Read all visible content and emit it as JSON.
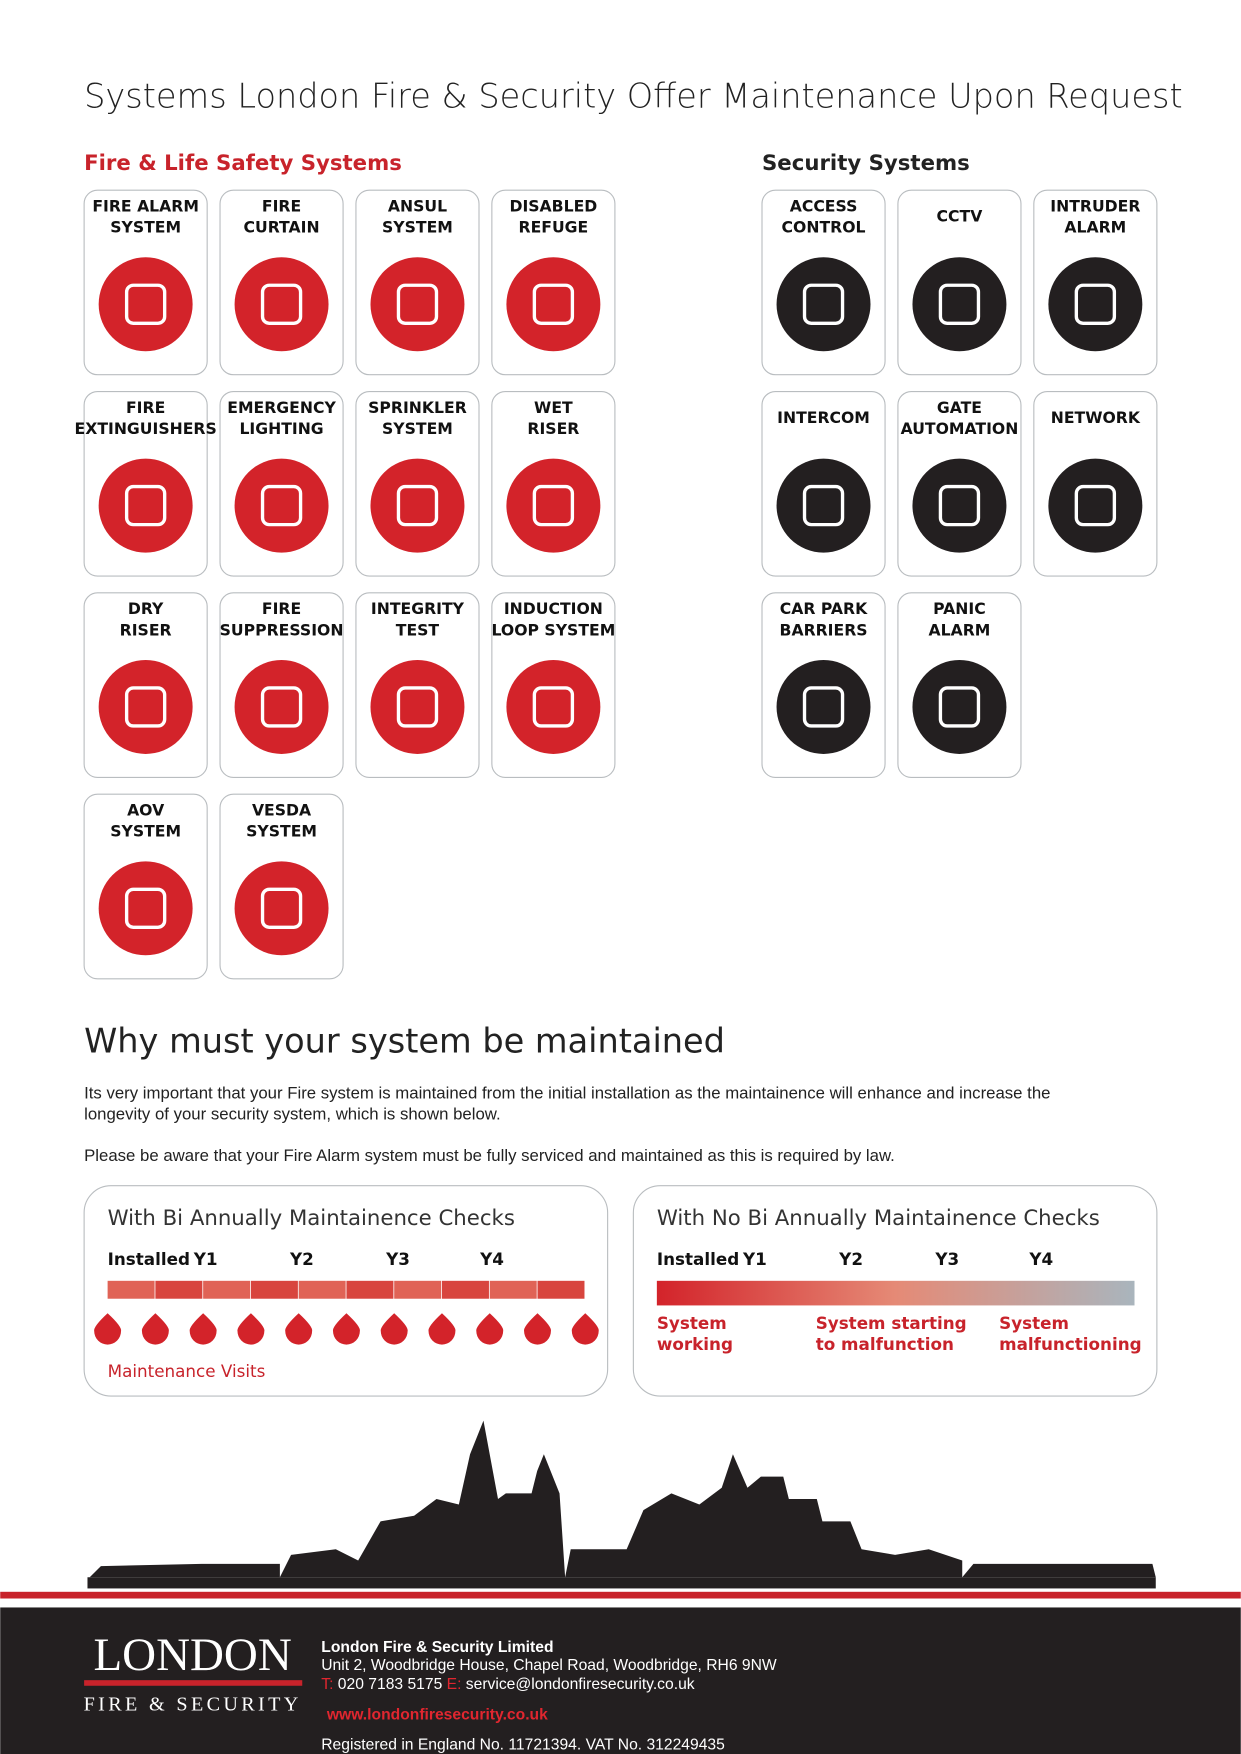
{
  "header": {
    "title": "Systems London Fire & Security Offer Maintenance Upon Request"
  },
  "fire": {
    "heading": "Fire & Life Safety Systems",
    "items": [
      [
        "FIRE ALARM",
        "SYSTEM"
      ],
      [
        "FIRE",
        "CURTAIN"
      ],
      [
        "ANSUL",
        "SYSTEM"
      ],
      [
        "DISABLED",
        "REFUGE"
      ],
      [
        "FIRE",
        "EXTINGUISHERS"
      ],
      [
        "EMERGENCY",
        "LIGHTING"
      ],
      [
        "SPRINKLER",
        "SYSTEM"
      ],
      [
        "WET",
        "RISER"
      ],
      [
        "DRY",
        "RISER"
      ],
      [
        "FIRE",
        "SUPPRESSION"
      ],
      [
        "INTEGRITY",
        "TEST"
      ],
      [
        "INDUCTION",
        "LOOP SYSTEM"
      ],
      [
        "AOV",
        "SYSTEM"
      ],
      [
        "VESDA",
        "SYSTEM"
      ]
    ]
  },
  "security": {
    "heading": "Security Systems",
    "items": [
      [
        "ACCESS",
        "CONTROL"
      ],
      [
        "CCTV"
      ],
      [
        "INTRUDER",
        "ALARM"
      ],
      [
        "INTERCOM"
      ],
      [
        "GATE",
        "AUTOMATION"
      ],
      [
        "NETWORK"
      ],
      [
        "CAR PARK",
        "BARRIERS"
      ],
      [
        "PANIC",
        "ALARM"
      ]
    ]
  },
  "section": {
    "title": "Why must your system be maintained",
    "paragraphs": [
      [
        "Its very important that your Fire system is maintained from the initial installation as the maintainence will enhance and increase the",
        "longevity of your security system, which is shown below."
      ],
      [
        "Please be aware that your Fire Alarm system must be fully serviced and maintained as this is required by law."
      ]
    ]
  },
  "panels": [
    {
      "title": "With Bi Annually Maintainence Checks",
      "years": [
        "Installed",
        "Y1",
        "Y2",
        "Y3",
        "Y4"
      ],
      "note": "Maintenance Visits"
    },
    {
      "title": "With No Bi Annually Maintainence Checks",
      "years": [
        "Installed",
        "Y1",
        "Y2",
        "Y3",
        "Y4"
      ],
      "statuses": [
        [
          "System",
          "working"
        ],
        [
          "System starting",
          "to malfunction"
        ],
        [
          "System",
          "malfunctioning"
        ]
      ]
    }
  ],
  "footer": {
    "logo_top": "LONDON",
    "logo_bottom": "FIRE & SECURITY",
    "company": "London Fire & Security Limited",
    "address": "Unit 2, Woodbridge House, Chapel Road, Woodbridge, RH6 9NW",
    "phone_label": "T:",
    "phone": "020 7183 5175",
    "email_label": "E:",
    "email": "service@londonfiresecurity.co.uk",
    "website": "www.londonfiresecurity.co.uk",
    "registration": "Registered in England No. 11721394.  VAT  No. 312249435"
  }
}
